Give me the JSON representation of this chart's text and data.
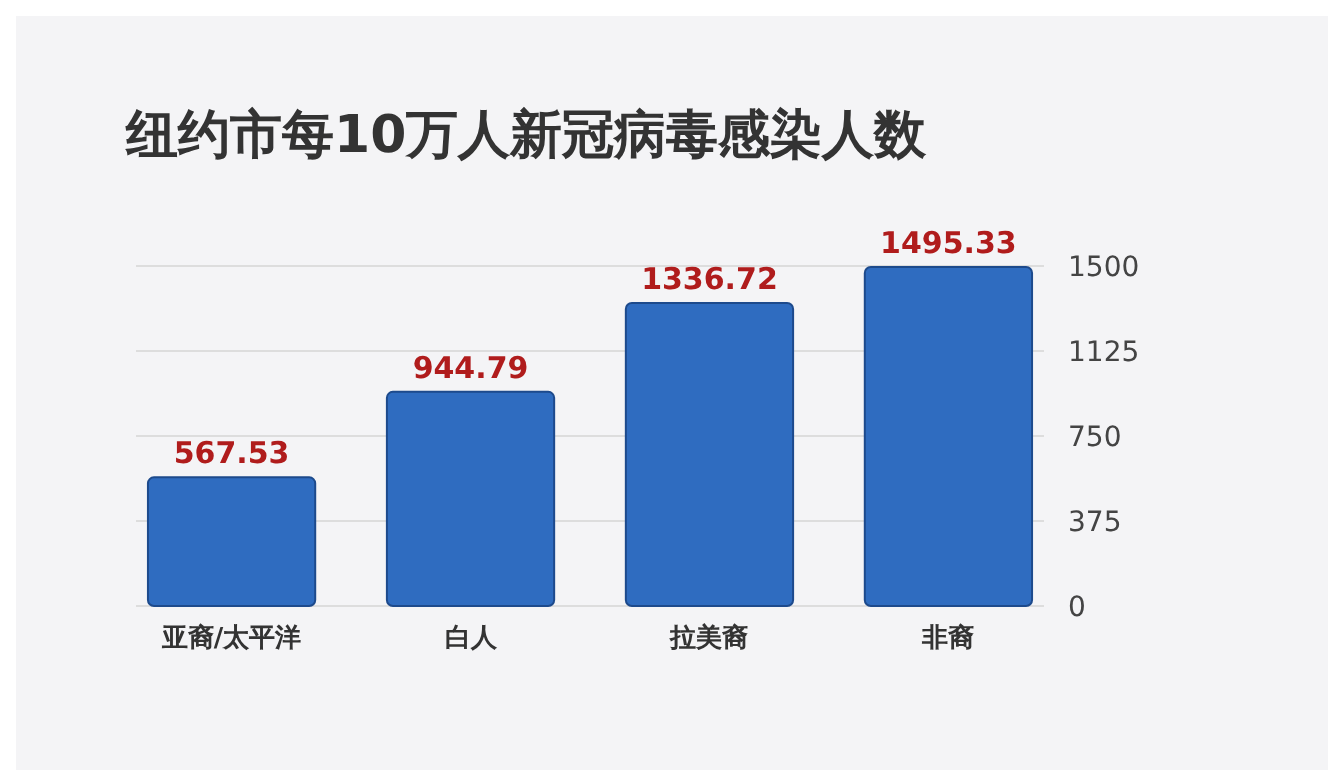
{
  "chart_data": {
    "type": "bar",
    "title": "纽约市每10万人新冠病毒感染人数",
    "categories": [
      "亚裔/太平洋",
      "白人",
      "拉美裔",
      "非裔"
    ],
    "values": [
      567.53,
      944.79,
      1336.72,
      1495.33
    ],
    "color": "#2f6cc0",
    "ylim": [
      0,
      1500
    ],
    "yticks": [
      0,
      375,
      750,
      1125,
      1500
    ],
    "grid": "y",
    "data_labels": true
  }
}
